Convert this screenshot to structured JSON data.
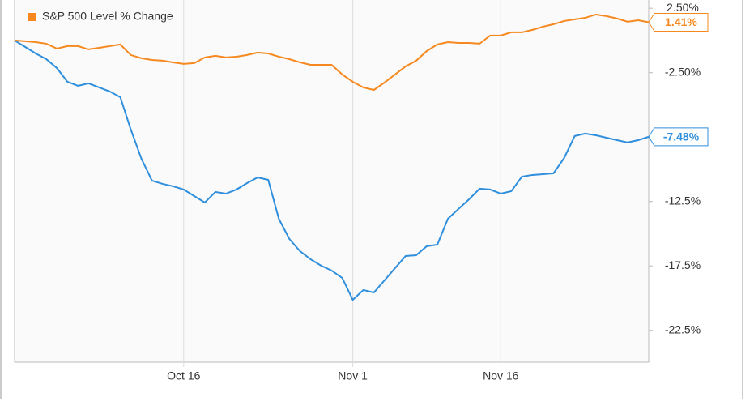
{
  "chart_data": {
    "type": "line",
    "categories": [
      null,
      null,
      null,
      null,
      null,
      null,
      null,
      null,
      null,
      null,
      null,
      null,
      null,
      null,
      null,
      null,
      "Oct 16",
      null,
      null,
      null,
      null,
      null,
      null,
      null,
      null,
      null,
      null,
      null,
      null,
      null,
      null,
      null,
      "Nov 1",
      null,
      null,
      null,
      null,
      null,
      null,
      null,
      null,
      null,
      null,
      null,
      null,
      null,
      "Nov 16",
      null,
      null,
      null,
      null,
      null,
      null,
      null,
      null,
      null,
      null,
      null,
      null,
      null,
      null
    ],
    "series": [
      {
        "color": "#2f8fdc",
        "end_label": "-7.48%",
        "values": [
          0,
          -0.5,
          -1.01,
          -1.45,
          -2.14,
          -3.21,
          -3.52,
          -3.33,
          -3.65,
          -3.96,
          -4.4,
          -6.92,
          -9.18,
          -10.88,
          -11.13,
          -11.32,
          -11.57,
          -12.08,
          -12.58,
          -11.76,
          -11.89,
          -11.57,
          -11.07,
          -10.63,
          -10.82,
          -13.84,
          -15.41,
          -16.35,
          -16.98,
          -17.48,
          -17.86,
          -18.43,
          -20.13,
          -19.37,
          -19.56,
          -18.62,
          -17.67,
          -16.73,
          -16.67,
          -15.97,
          -15.85,
          -13.84,
          -13.08,
          -12.33,
          -11.51,
          -11.57,
          -11.89,
          -11.7,
          -10.57,
          -10.44,
          -10.38,
          -10.31,
          -9.12,
          -7.42,
          -7.23,
          -7.36,
          -7.55,
          -7.74,
          -7.92,
          -7.74,
          -7.48
        ]
      },
      {
        "name": "S&P 500 Level % Change",
        "color": "#f5891f",
        "end_label": "1.41%",
        "values": [
          0,
          -0.06,
          -0.13,
          -0.25,
          -0.63,
          -0.44,
          -0.44,
          -0.69,
          -0.57,
          -0.44,
          -0.31,
          -1.13,
          -1.38,
          -1.51,
          -1.57,
          -1.7,
          -1.82,
          -1.76,
          -1.32,
          -1.19,
          -1.32,
          -1.26,
          -1.13,
          -0.94,
          -1.01,
          -1.26,
          -1.45,
          -1.7,
          -1.89,
          -1.89,
          -1.89,
          -2.64,
          -3.21,
          -3.65,
          -3.84,
          -3.27,
          -2.64,
          -2.01,
          -1.57,
          -0.82,
          -0.31,
          -0.13,
          -0.19,
          -0.19,
          -0.25,
          0.38,
          0.38,
          0.63,
          0.63,
          0.82,
          1.07,
          1.26,
          1.51,
          1.64,
          1.76,
          2.01,
          1.89,
          1.7,
          1.45,
          1.57,
          1.41
        ]
      }
    ],
    "ylim": [
      -24.97,
      3.14
    ],
    "yticks": [
      {
        "value": 2.5,
        "label": "2.50%"
      },
      {
        "value": -2.5,
        "label": "-2.50%"
      },
      {
        "value": -12.5,
        "label": "-12.5%"
      },
      {
        "value": -17.5,
        "label": "-17.5%"
      },
      {
        "value": -22.5,
        "label": "-22.5%"
      }
    ],
    "x_grid": true
  }
}
